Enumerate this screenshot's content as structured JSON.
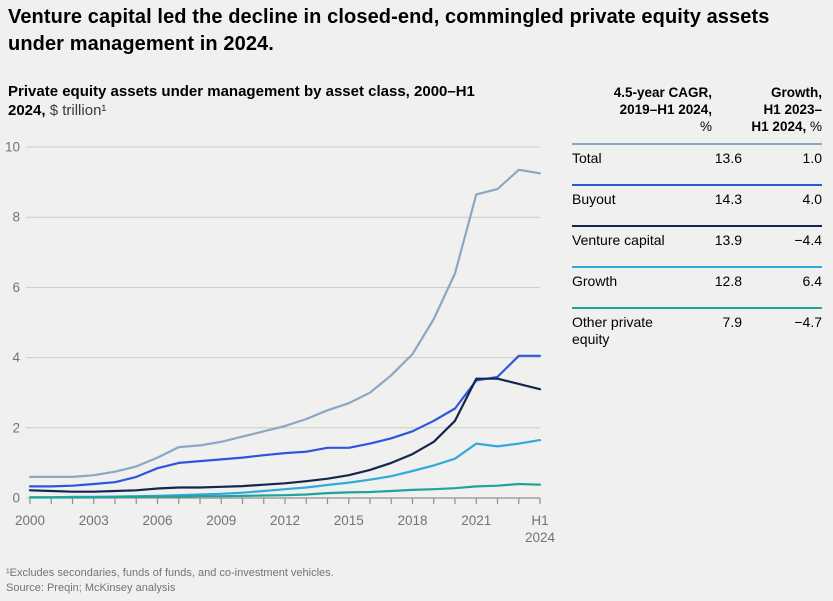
{
  "figure": {
    "title": "Venture capital led the decline in closed-end, commingled private equity assets under management in 2024.",
    "subtitle_bold": "Private equity assets under management by asset class, 2000–H1 2024,",
    "subtitle_unit": "$ trillion¹",
    "footnote": "¹Excludes secondaries, funds of funds, and co-investment vehicles.",
    "source": "Source: Preqin; McKinsey analysis"
  },
  "colors": {
    "background": "#f0f0ee",
    "gridline": "#cccbc9",
    "axis": "#8f8f8f",
    "axis_text": "#737373",
    "total": "#8aa8c5",
    "buyout": "#2c55e0",
    "venture_capital": "#142550",
    "growth": "#31a9dd",
    "other_private_equity": "#20a39a"
  },
  "chart_data": {
    "type": "line",
    "title": "Private equity assets under management by asset class, 2000–H1 2024, $ trillion",
    "xlabel": "",
    "ylabel": "$ trillion",
    "ylim": [
      0,
      10
    ],
    "y_ticks": [
      0,
      2,
      4,
      6,
      8,
      10
    ],
    "grid": "horizontal",
    "legend_position": "none (series identified by table row colors)",
    "x": [
      "2000",
      "2001",
      "2002",
      "2003",
      "2004",
      "2005",
      "2006",
      "2007",
      "2008",
      "2009",
      "2010",
      "2011",
      "2012",
      "2013",
      "2014",
      "2015",
      "2016",
      "2017",
      "2018",
      "2019",
      "2020",
      "2021",
      "2022",
      "2023",
      "H1 2024"
    ],
    "x_tick_positions": [
      0,
      3,
      6,
      9,
      12,
      15,
      18,
      21,
      24
    ],
    "x_tick_labels": [
      "2000",
      "2003",
      "2006",
      "2009",
      "2012",
      "2015",
      "2018",
      "2021",
      "H1 2024"
    ],
    "series": [
      {
        "key": "total",
        "name": "Total",
        "color": "#8aa8c5",
        "values": [
          0.6,
          0.6,
          0.6,
          0.65,
          0.75,
          0.9,
          1.15,
          1.45,
          1.5,
          1.6,
          1.75,
          1.9,
          2.05,
          2.25,
          2.5,
          2.7,
          3.0,
          3.5,
          4.1,
          5.1,
          6.4,
          8.65,
          8.8,
          9.35,
          9.25
        ]
      },
      {
        "key": "buyout",
        "name": "Buyout",
        "color": "#2c55e0",
        "values": [
          0.33,
          0.33,
          0.35,
          0.4,
          0.45,
          0.6,
          0.85,
          1.0,
          1.05,
          1.1,
          1.15,
          1.22,
          1.28,
          1.32,
          1.43,
          1.43,
          1.55,
          1.7,
          1.9,
          2.2,
          2.55,
          3.35,
          3.45,
          4.05,
          4.05
        ]
      },
      {
        "key": "venture-capital",
        "name": "Venture capital",
        "color": "#142550",
        "values": [
          0.22,
          0.2,
          0.18,
          0.18,
          0.2,
          0.22,
          0.27,
          0.3,
          0.3,
          0.32,
          0.34,
          0.38,
          0.42,
          0.48,
          0.55,
          0.65,
          0.8,
          1.0,
          1.25,
          1.6,
          2.2,
          3.4,
          3.4,
          3.25,
          3.1
        ]
      },
      {
        "key": "growth",
        "name": "Growth",
        "color": "#31a9dd",
        "values": [
          0.02,
          0.02,
          0.03,
          0.03,
          0.04,
          0.05,
          0.06,
          0.08,
          0.1,
          0.12,
          0.15,
          0.2,
          0.25,
          0.3,
          0.37,
          0.44,
          0.52,
          0.62,
          0.77,
          0.93,
          1.12,
          1.55,
          1.47,
          1.55,
          1.65
        ]
      },
      {
        "key": "other-private-equity",
        "name": "Other private equity",
        "color": "#20a39a",
        "values": [
          0.02,
          0.02,
          0.02,
          0.02,
          0.03,
          0.03,
          0.04,
          0.04,
          0.05,
          0.05,
          0.06,
          0.07,
          0.08,
          0.1,
          0.14,
          0.16,
          0.17,
          0.2,
          0.23,
          0.25,
          0.28,
          0.33,
          0.35,
          0.4,
          0.38
        ]
      }
    ]
  },
  "table": {
    "header": {
      "col1_line1": "4.5-year CAGR,",
      "col1_line2": "2019–H1 2024,",
      "col1_unit": "%",
      "col2_line1": "Growth,",
      "col2_line2": "H1 2023–",
      "col2_line3_bold": "H1 2024,",
      "col2_unit": "%"
    },
    "rows": [
      {
        "label": "Total",
        "cagr": "13.6",
        "growth": "1.0"
      },
      {
        "label": "Buyout",
        "cagr": "14.3",
        "growth": "4.0"
      },
      {
        "label": "Venture capital",
        "cagr": "13.9",
        "growth": "−4.4"
      },
      {
        "label": "Growth",
        "cagr": "12.8",
        "growth": "6.4"
      },
      {
        "label": "Other private equity",
        "cagr": "7.9",
        "growth": "−4.7"
      }
    ]
  }
}
